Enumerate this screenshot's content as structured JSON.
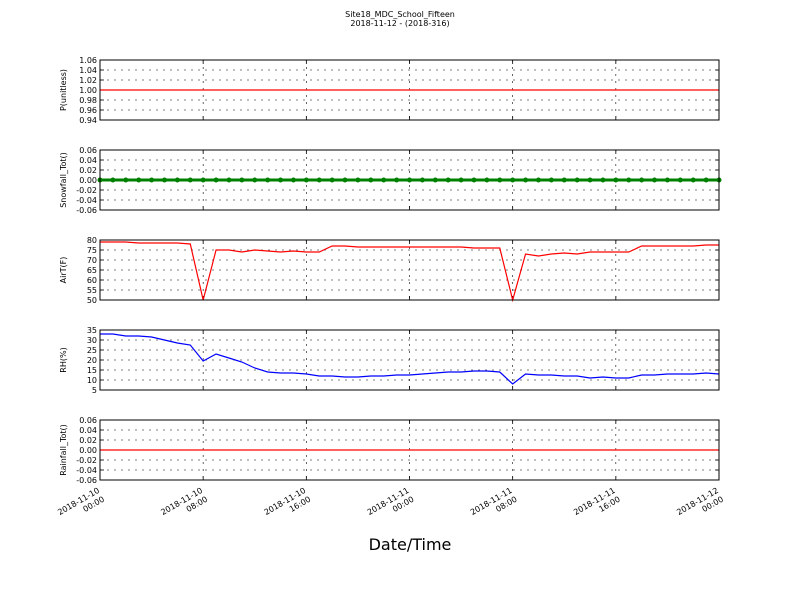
{
  "title": "Site18_MDC_School_Fifteen",
  "subtitle": "2018-11-12 - (2018-316)",
  "xlabel": "Date/Time",
  "xlim": [
    "2018-11-10 00:00",
    "2018-11-12 00:00"
  ],
  "xticks": [
    "2018-11-10 00:00",
    "2018-11-10 08:00",
    "2018-11-10 16:00",
    "2018-11-11 00:00",
    "2018-11-11 08:00",
    "2018-11-11 16:00",
    "2018-11-12 00:00"
  ],
  "chart_data": [
    {
      "type": "line",
      "ylabel": "P(unitless)",
      "color": "#ff0000",
      "x": [
        "2018-11-10 00:00",
        "2018-11-12 00:00"
      ],
      "values": [
        1,
        1
      ],
      "ylim": [
        0.94,
        1.06
      ],
      "yticks": [
        0.94,
        0.96,
        0.98,
        {
          "value": 1,
          "label": "1.00"
        },
        1.02,
        1.04,
        1.06
      ],
      "grid": true
    },
    {
      "type": "line",
      "ylabel": "Snowfall_Tot()",
      "color": "#008000",
      "marker": true,
      "x": [
        "2018-11-10 00:00",
        "2018-11-10 01:00",
        "2018-11-10 02:00",
        "2018-11-10 03:00",
        "2018-11-10 04:00",
        "2018-11-10 05:00",
        "2018-11-10 06:00",
        "2018-11-10 07:00",
        "2018-11-10 08:00",
        "2018-11-10 09:00",
        "2018-11-10 10:00",
        "2018-11-10 11:00",
        "2018-11-10 12:00",
        "2018-11-10 13:00",
        "2018-11-10 14:00",
        "2018-11-10 15:00",
        "2018-11-10 16:00",
        "2018-11-10 17:00",
        "2018-11-10 18:00",
        "2018-11-10 19:00",
        "2018-11-10 20:00",
        "2018-11-10 21:00",
        "2018-11-10 22:00",
        "2018-11-10 23:00",
        "2018-11-11 00:00",
        "2018-11-11 01:00",
        "2018-11-11 02:00",
        "2018-11-11 03:00",
        "2018-11-11 04:00",
        "2018-11-11 05:00",
        "2018-11-11 06:00",
        "2018-11-11 07:00",
        "2018-11-11 08:00",
        "2018-11-11 09:00",
        "2018-11-11 10:00",
        "2018-11-11 11:00",
        "2018-11-11 12:00",
        "2018-11-11 13:00",
        "2018-11-11 14:00",
        "2018-11-11 15:00",
        "2018-11-11 16:00",
        "2018-11-11 17:00",
        "2018-11-11 18:00",
        "2018-11-11 19:00",
        "2018-11-11 20:00",
        "2018-11-11 21:00",
        "2018-11-11 22:00",
        "2018-11-11 23:00",
        "2018-11-12 00:00"
      ],
      "values": [
        0,
        0,
        0,
        0,
        0,
        0,
        0,
        0,
        0,
        0,
        0,
        0,
        0,
        0,
        0,
        0,
        0,
        0,
        0,
        0,
        0,
        0,
        0,
        0,
        0,
        0,
        0,
        0,
        0,
        0,
        0,
        0,
        0,
        0,
        0,
        0,
        0,
        0,
        0,
        0,
        0,
        0,
        0,
        0,
        0,
        0,
        0,
        0,
        0
      ],
      "ylim": [
        -0.06,
        0.06
      ],
      "yticks": [
        -0.06,
        -0.04,
        -0.02,
        {
          "value": 0,
          "label": "0.00"
        },
        0.02,
        0.04,
        0.06
      ],
      "grid": true
    },
    {
      "type": "line",
      "ylabel": "AirT(F)",
      "color": "#ff0000",
      "x": [
        "2018-11-10 00:00",
        "2018-11-10 01:00",
        "2018-11-10 02:00",
        "2018-11-10 03:00",
        "2018-11-10 04:00",
        "2018-11-10 05:00",
        "2018-11-10 06:00",
        "2018-11-10 07:00",
        "2018-11-10 08:00",
        "2018-11-10 09:00",
        "2018-11-10 10:00",
        "2018-11-10 11:00",
        "2018-11-10 12:00",
        "2018-11-10 13:00",
        "2018-11-10 14:00",
        "2018-11-10 15:00",
        "2018-11-10 16:00",
        "2018-11-10 17:00",
        "2018-11-10 18:00",
        "2018-11-10 19:00",
        "2018-11-10 20:00",
        "2018-11-10 21:00",
        "2018-11-10 22:00",
        "2018-11-10 23:00",
        "2018-11-11 00:00",
        "2018-11-11 01:00",
        "2018-11-11 02:00",
        "2018-11-11 03:00",
        "2018-11-11 04:00",
        "2018-11-11 05:00",
        "2018-11-11 06:00",
        "2018-11-11 07:00",
        "2018-11-11 08:00",
        "2018-11-11 09:00",
        "2018-11-11 10:00",
        "2018-11-11 11:00",
        "2018-11-11 12:00",
        "2018-11-11 13:00",
        "2018-11-11 14:00",
        "2018-11-11 15:00",
        "2018-11-11 16:00",
        "2018-11-11 17:00",
        "2018-11-11 18:00",
        "2018-11-11 19:00",
        "2018-11-11 20:00",
        "2018-11-11 21:00",
        "2018-11-11 22:00",
        "2018-11-11 23:00",
        "2018-11-12 00:00"
      ],
      "values": [
        79,
        79,
        79,
        78.5,
        78.5,
        78.5,
        78.5,
        78,
        50,
        75,
        75,
        74,
        75,
        74.5,
        74,
        74.5,
        74,
        74,
        77,
        77,
        76.5,
        76.5,
        76.5,
        76.5,
        76.5,
        76.5,
        76.5,
        76.5,
        76.5,
        76,
        76,
        76,
        50,
        73,
        72,
        73,
        73.5,
        73,
        74,
        74,
        74,
        74,
        77,
        77,
        77,
        77,
        77,
        77.5,
        77.5
      ],
      "ylim": [
        50,
        80
      ],
      "yticks": [
        50,
        55,
        60,
        65,
        70,
        75,
        80
      ],
      "grid": true
    },
    {
      "type": "line",
      "ylabel": "RH(%)",
      "color": "#0000ff",
      "x": [
        "2018-11-10 00:00",
        "2018-11-10 01:00",
        "2018-11-10 02:00",
        "2018-11-10 03:00",
        "2018-11-10 04:00",
        "2018-11-10 05:00",
        "2018-11-10 06:00",
        "2018-11-10 07:00",
        "2018-11-10 08:00",
        "2018-11-10 09:00",
        "2018-11-10 10:00",
        "2018-11-10 11:00",
        "2018-11-10 12:00",
        "2018-11-10 13:00",
        "2018-11-10 14:00",
        "2018-11-10 15:00",
        "2018-11-10 16:00",
        "2018-11-10 17:00",
        "2018-11-10 18:00",
        "2018-11-10 19:00",
        "2018-11-10 20:00",
        "2018-11-10 21:00",
        "2018-11-10 22:00",
        "2018-11-10 23:00",
        "2018-11-11 00:00",
        "2018-11-11 01:00",
        "2018-11-11 02:00",
        "2018-11-11 03:00",
        "2018-11-11 04:00",
        "2018-11-11 05:00",
        "2018-11-11 06:00",
        "2018-11-11 07:00",
        "2018-11-11 08:00",
        "2018-11-11 09:00",
        "2018-11-11 10:00",
        "2018-11-11 11:00",
        "2018-11-11 12:00",
        "2018-11-11 13:00",
        "2018-11-11 14:00",
        "2018-11-11 15:00",
        "2018-11-11 16:00",
        "2018-11-11 17:00",
        "2018-11-11 18:00",
        "2018-11-11 19:00",
        "2018-11-11 20:00",
        "2018-11-11 21:00",
        "2018-11-11 22:00",
        "2018-11-11 23:00",
        "2018-11-12 00:00"
      ],
      "values": [
        33,
        33,
        32,
        32,
        31.5,
        30,
        28.5,
        27.5,
        19.5,
        23,
        21,
        19,
        16,
        14,
        13.5,
        13.5,
        13,
        12,
        12,
        11.5,
        11.5,
        12,
        12,
        12.5,
        12.5,
        13,
        13.5,
        14,
        14,
        14.5,
        14.5,
        14,
        8,
        13,
        12.5,
        12.5,
        12,
        12,
        11,
        11.5,
        11,
        11,
        12.5,
        12.5,
        13,
        13,
        13,
        13.5,
        13
      ],
      "ylim": [
        5,
        35
      ],
      "yticks": [
        5,
        10,
        15,
        20,
        25,
        30,
        35
      ],
      "grid": true
    },
    {
      "type": "line",
      "ylabel": "Rainfall_Tot()",
      "color": "#ff0000",
      "x": [
        "2018-11-10 00:00",
        "2018-11-12 00:00"
      ],
      "values": [
        0,
        0
      ],
      "ylim": [
        -0.06,
        0.06
      ],
      "yticks": [
        -0.06,
        -0.04,
        -0.02,
        {
          "value": 0,
          "label": "0.00"
        },
        0.02,
        0.04,
        0.06
      ],
      "grid": true
    }
  ]
}
